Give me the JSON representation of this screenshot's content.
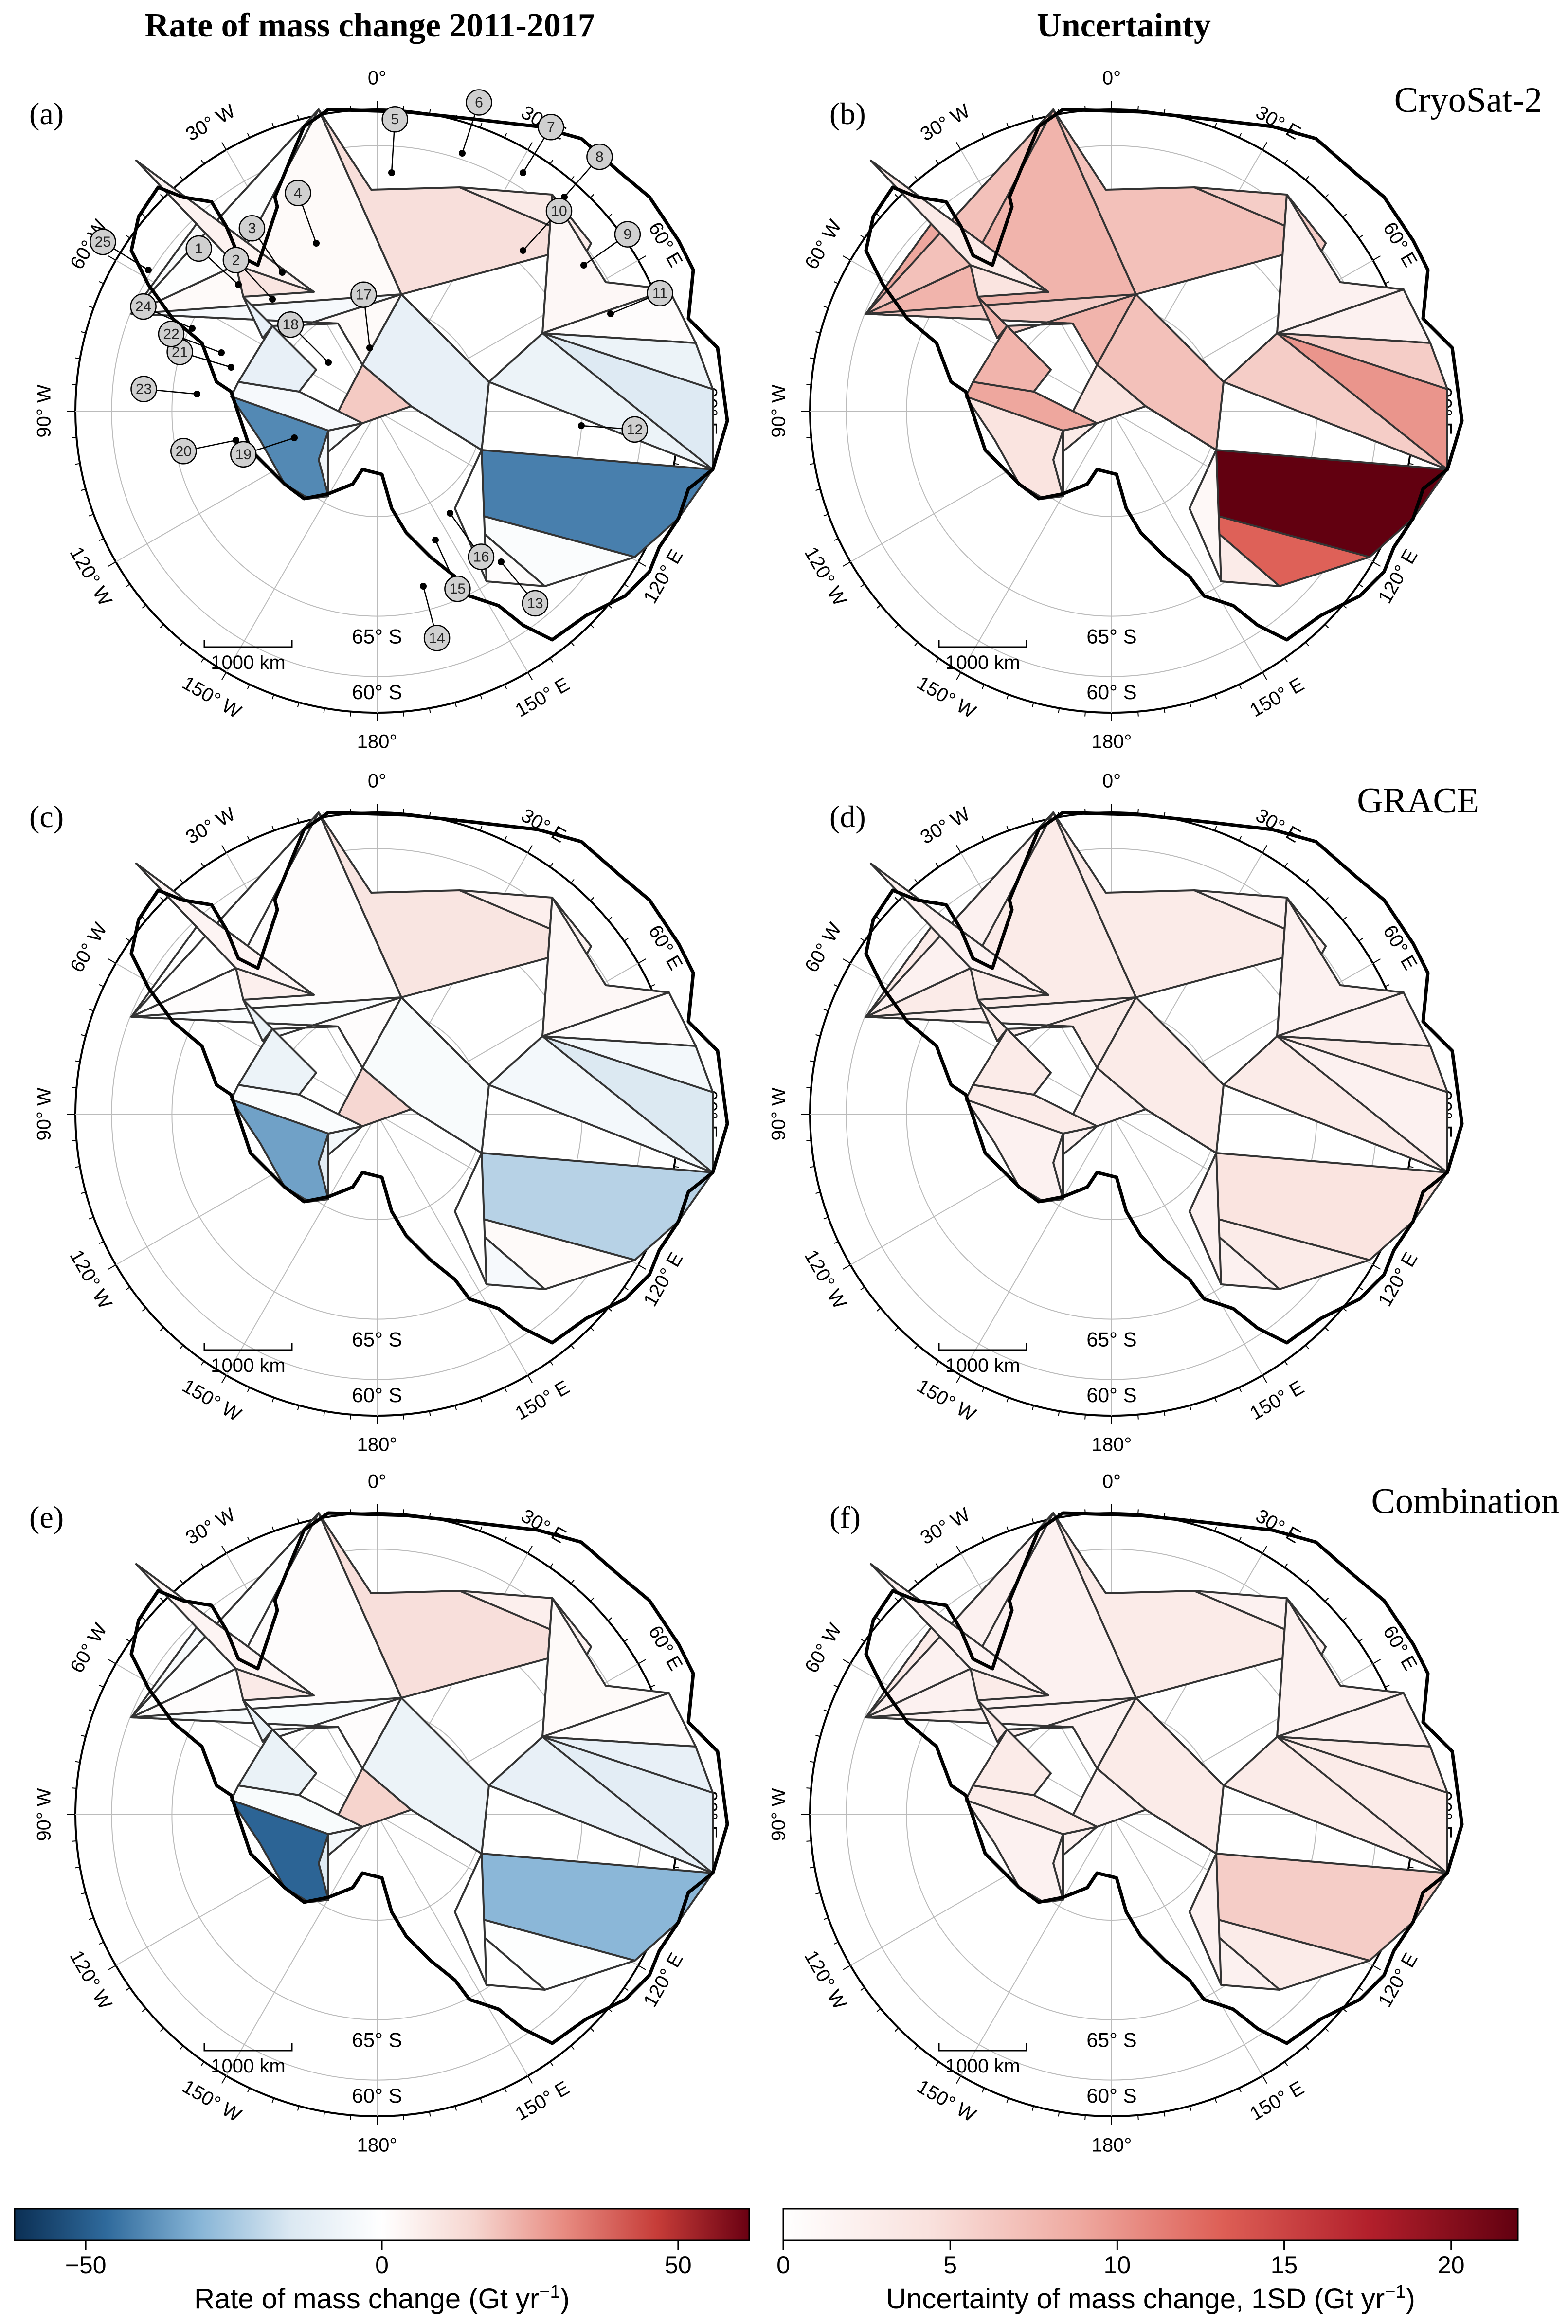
{
  "column_titles": {
    "left": "Rate of mass change 2011-2017",
    "right": "Uncertainty"
  },
  "panels": [
    {
      "letter": "(a)",
      "title": "",
      "kind": "rate",
      "labels": true,
      "basins": [
        {
          "n": "1",
          "v": 2
        },
        {
          "n": "2",
          "v": -4
        },
        {
          "n": "3",
          "v": -2
        },
        {
          "n": "4",
          "v": -1
        },
        {
          "n": "5",
          "v": 12
        },
        {
          "n": "6",
          "v": 8
        },
        {
          "n": "7",
          "v": 7
        },
        {
          "n": "8",
          "v": 3
        },
        {
          "n": "9",
          "v": 1
        },
        {
          "n": "10",
          "v": -8
        },
        {
          "n": "11",
          "v": -14
        },
        {
          "n": "12",
          "v": -42
        },
        {
          "n": "13",
          "v": -2
        },
        {
          "n": "14",
          "v": 1
        },
        {
          "n": "15",
          "v": 0
        },
        {
          "n": "16",
          "v": 6
        },
        {
          "n": "17",
          "v": -10
        },
        {
          "n": "18",
          "v": 18
        },
        {
          "n": "19",
          "v": -3
        },
        {
          "n": "20",
          "v": -6
        },
        {
          "n": "21",
          "v": -40
        },
        {
          "n": "22",
          "v": -4
        },
        {
          "n": "23",
          "v": -10
        },
        {
          "n": "24",
          "v": 10
        },
        {
          "n": "25",
          "v": 5
        }
      ]
    },
    {
      "letter": "(b)",
      "title": "CryoSat-2",
      "kind": "unc",
      "labels": false,
      "basins": [
        {
          "n": "1",
          "v": 8
        },
        {
          "n": "2",
          "v": 6
        },
        {
          "n": "3",
          "v": 9
        },
        {
          "n": "4",
          "v": 7
        },
        {
          "n": "5",
          "v": 7
        },
        {
          "n": "6",
          "v": 6
        },
        {
          "n": "7",
          "v": 6
        },
        {
          "n": "8",
          "v": 2
        },
        {
          "n": "9",
          "v": 2
        },
        {
          "n": "10",
          "v": 6
        },
        {
          "n": "11",
          "v": 10
        },
        {
          "n": "12",
          "v": 22
        },
        {
          "n": "13",
          "v": 13
        },
        {
          "n": "14",
          "v": 3
        },
        {
          "n": "15",
          "v": 1
        },
        {
          "n": "16",
          "v": 5
        },
        {
          "n": "17",
          "v": 7
        },
        {
          "n": "18",
          "v": 4
        },
        {
          "n": "19",
          "v": 3
        },
        {
          "n": "20",
          "v": 2
        },
        {
          "n": "21",
          "v": 4
        },
        {
          "n": "22",
          "v": 9
        },
        {
          "n": "23",
          "v": 8
        },
        {
          "n": "24",
          "v": 4
        },
        {
          "n": "25",
          "v": 3
        }
      ]
    },
    {
      "letter": "(c)",
      "title": "",
      "kind": "rate",
      "labels": false,
      "basins": [
        {
          "n": "1",
          "v": 1
        },
        {
          "n": "2",
          "v": -2
        },
        {
          "n": "3",
          "v": 0
        },
        {
          "n": "4",
          "v": 0
        },
        {
          "n": "5",
          "v": 10
        },
        {
          "n": "6",
          "v": 6
        },
        {
          "n": "7",
          "v": 5
        },
        {
          "n": "8",
          "v": 3
        },
        {
          "n": "9",
          "v": 1
        },
        {
          "n": "10",
          "v": -5
        },
        {
          "n": "11",
          "v": -15
        },
        {
          "n": "12",
          "v": -22
        },
        {
          "n": "13",
          "v": 2
        },
        {
          "n": "14",
          "v": -4
        },
        {
          "n": "15",
          "v": 0
        },
        {
          "n": "16",
          "v": 0
        },
        {
          "n": "17",
          "v": -3
        },
        {
          "n": "18",
          "v": 15
        },
        {
          "n": "19",
          "v": -5
        },
        {
          "n": "20",
          "v": -12
        },
        {
          "n": "21",
          "v": -35
        },
        {
          "n": "22",
          "v": -2
        },
        {
          "n": "23",
          "v": -8
        },
        {
          "n": "24",
          "v": 6
        },
        {
          "n": "25",
          "v": 4
        }
      ]
    },
    {
      "letter": "(d)",
      "title": "GRACE",
      "kind": "unc",
      "labels": false,
      "basins": [
        {
          "n": "1",
          "v": 3
        },
        {
          "n": "2",
          "v": 2
        },
        {
          "n": "3",
          "v": 3
        },
        {
          "n": "4",
          "v": 2
        },
        {
          "n": "5",
          "v": 3
        },
        {
          "n": "6",
          "v": 2
        },
        {
          "n": "7",
          "v": 2
        },
        {
          "n": "8",
          "v": 2
        },
        {
          "n": "9",
          "v": 2
        },
        {
          "n": "10",
          "v": 3
        },
        {
          "n": "11",
          "v": 2
        },
        {
          "n": "12",
          "v": 4
        },
        {
          "n": "13",
          "v": 3
        },
        {
          "n": "14",
          "v": 2
        },
        {
          "n": "15",
          "v": 2
        },
        {
          "n": "16",
          "v": 2
        },
        {
          "n": "17",
          "v": 3
        },
        {
          "n": "18",
          "v": 2
        },
        {
          "n": "19",
          "v": 2
        },
        {
          "n": "20",
          "v": 2
        },
        {
          "n": "21",
          "v": 2
        },
        {
          "n": "22",
          "v": 3
        },
        {
          "n": "23",
          "v": 3
        },
        {
          "n": "24",
          "v": 3
        },
        {
          "n": "25",
          "v": 2
        }
      ]
    },
    {
      "letter": "(e)",
      "title": "",
      "kind": "rate",
      "labels": false,
      "basins": [
        {
          "n": "1",
          "v": 1
        },
        {
          "n": "2",
          "v": -3
        },
        {
          "n": "3",
          "v": -3
        },
        {
          "n": "4",
          "v": -1
        },
        {
          "n": "5",
          "v": 12
        },
        {
          "n": "6",
          "v": 6
        },
        {
          "n": "7",
          "v": 5
        },
        {
          "n": "8",
          "v": 2
        },
        {
          "n": "9",
          "v": 1
        },
        {
          "n": "10",
          "v": -10
        },
        {
          "n": "11",
          "v": -12
        },
        {
          "n": "12",
          "v": -30
        },
        {
          "n": "13",
          "v": -1
        },
        {
          "n": "14",
          "v": 0
        },
        {
          "n": "15",
          "v": 0
        },
        {
          "n": "16",
          "v": 1
        },
        {
          "n": "17",
          "v": -8
        },
        {
          "n": "18",
          "v": 16
        },
        {
          "n": "19",
          "v": -5
        },
        {
          "n": "20",
          "v": -14
        },
        {
          "n": "21",
          "v": -48
        },
        {
          "n": "22",
          "v": -3
        },
        {
          "n": "23",
          "v": -9
        },
        {
          "n": "24",
          "v": 8
        },
        {
          "n": "25",
          "v": 4
        }
      ]
    },
    {
      "letter": "(f)",
      "title": "Combination",
      "kind": "unc",
      "labels": false,
      "basins": [
        {
          "n": "1",
          "v": 2
        },
        {
          "n": "2",
          "v": 2
        },
        {
          "n": "3",
          "v": 3
        },
        {
          "n": "4",
          "v": 2
        },
        {
          "n": "5",
          "v": 3
        },
        {
          "n": "6",
          "v": 2
        },
        {
          "n": "7",
          "v": 2
        },
        {
          "n": "8",
          "v": 2
        },
        {
          "n": "9",
          "v": 2
        },
        {
          "n": "10",
          "v": 3
        },
        {
          "n": "11",
          "v": 3
        },
        {
          "n": "12",
          "v": 6
        },
        {
          "n": "13",
          "v": 3
        },
        {
          "n": "14",
          "v": 2
        },
        {
          "n": "15",
          "v": 2
        },
        {
          "n": "16",
          "v": 2
        },
        {
          "n": "17",
          "v": 3
        },
        {
          "n": "18",
          "v": 2
        },
        {
          "n": "19",
          "v": 2
        },
        {
          "n": "20",
          "v": 2
        },
        {
          "n": "21",
          "v": 2
        },
        {
          "n": "22",
          "v": 3
        },
        {
          "n": "23",
          "v": 3
        },
        {
          "n": "24",
          "v": 3
        },
        {
          "n": "25",
          "v": 2
        }
      ]
    }
  ],
  "graticule": {
    "lon_labels": [
      "0°",
      "30° E",
      "60° E",
      "90° E",
      "120° E",
      "150° E",
      "180°",
      "150° W",
      "120° W",
      "90° W",
      "60° W",
      "30° W"
    ],
    "lat_labels": [
      "65° S",
      "60° S"
    ],
    "scale_bar": "1000 km"
  },
  "colorbars": {
    "rate": {
      "label": "Rate of mass change (Gt yr",
      "label_sup": "−1",
      "label_end": ")",
      "range": [
        -62,
        62
      ],
      "ticks": [
        {
          "v": -50,
          "t": "−50"
        },
        {
          "v": 0,
          "t": "0"
        },
        {
          "v": 50,
          "t": "50"
        }
      ],
      "colors": [
        "#0b2f54",
        "#2f6a9c",
        "#86b4d6",
        "#dbe8f2",
        "#ffffff",
        "#f6d6d0",
        "#e78a80",
        "#c63c38",
        "#6a0012"
      ]
    },
    "unc": {
      "label": "Uncertainty of mass change, 1SD (Gt yr",
      "label_sup": "−1",
      "label_end": ")",
      "range": [
        0,
        22
      ],
      "ticks": [
        {
          "v": 0,
          "t": "0"
        },
        {
          "v": 5,
          "t": "5"
        },
        {
          "v": 10,
          "t": "10"
        },
        {
          "v": 15,
          "t": "15"
        },
        {
          "v": 20,
          "t": "20"
        }
      ],
      "colors": [
        "#ffffff",
        "#f9e1dd",
        "#efaaa1",
        "#dd5e55",
        "#b21f2b",
        "#620010"
      ]
    }
  }
}
